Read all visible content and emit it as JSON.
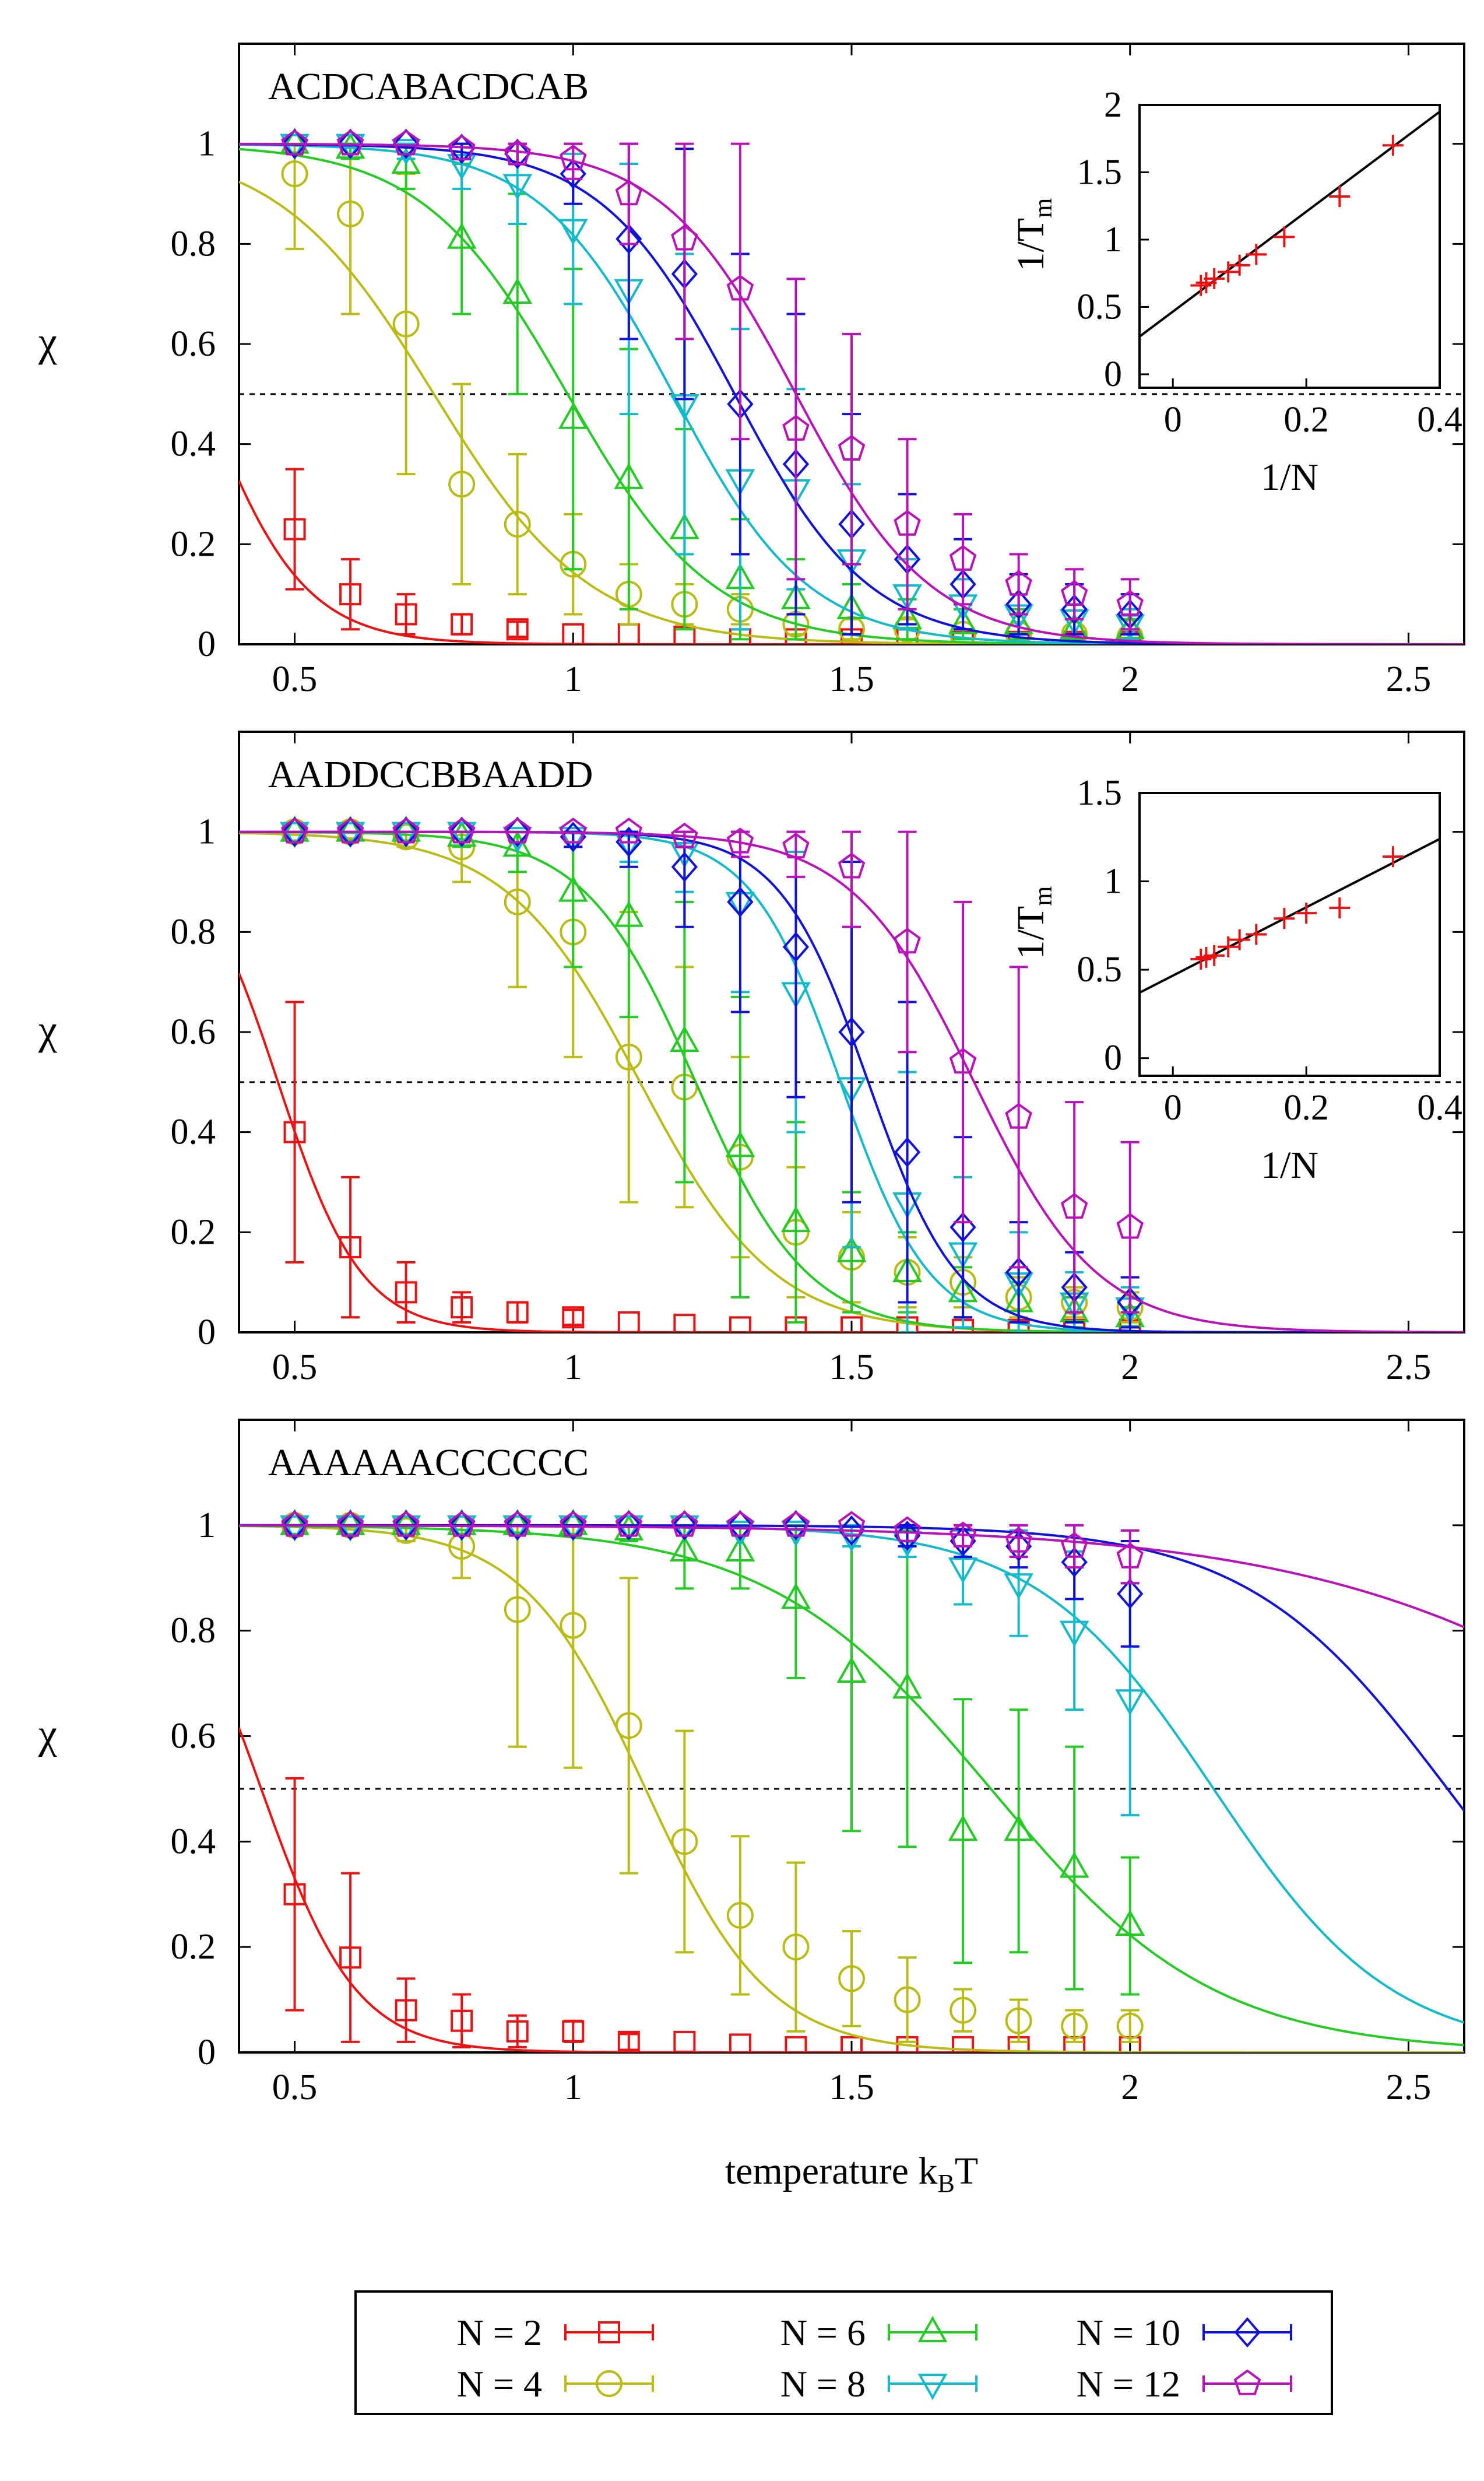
{
  "chart_data": [
    {
      "type": "line",
      "title": "ACDCABACDCAB",
      "xlabel": "",
      "ylabel": "χ",
      "xlim": [
        0.4,
        2.6
      ],
      "ylim": [
        0,
        1.2
      ],
      "xticks": [
        "0.5",
        "1",
        "1.5",
        "2",
        "2.5"
      ],
      "yticks": [
        "0",
        "0.2",
        "0.4",
        "0.6",
        "0.8",
        "1"
      ],
      "reference_line": {
        "y": 0.5,
        "style": "dashed"
      },
      "x": [
        0.5,
        0.6,
        0.7,
        0.8,
        0.9,
        1.0,
        1.1,
        1.2,
        1.3,
        1.4,
        1.5,
        1.6,
        1.7,
        1.8,
        1.9,
        2.0
      ],
      "series": [
        {
          "name": "N = 2",
          "values": [
            0.23,
            0.1,
            0.06,
            0.04,
            0.03,
            0.02,
            0.02,
            0.015,
            0.01,
            0.01,
            0.01,
            0.01,
            0.005,
            0.005,
            0.005,
            0.005
          ],
          "errors": [
            0.12,
            0.07,
            0.04,
            0.02,
            0.015,
            0.01,
            0.01,
            0.01,
            0.01,
            0.01,
            0.01,
            0.01,
            0.01,
            0.01,
            0.01,
            0.01
          ],
          "fit_tm": 0.335,
          "fit_w": 0.09
        },
        {
          "name": "N = 4",
          "values": [
            0.94,
            0.86,
            0.64,
            0.32,
            0.24,
            0.16,
            0.1,
            0.08,
            0.07,
            0.04,
            0.03,
            0.03,
            0.02,
            0.02,
            0.02,
            0.015
          ],
          "errors": [
            0.15,
            0.2,
            0.3,
            0.2,
            0.14,
            0.1,
            0.06,
            0.04,
            0.03,
            0.02,
            0.02,
            0.02,
            0.01,
            0.01,
            0.01,
            0.01
          ],
          "fit_tm": 0.75,
          "fit_w": 0.14
        },
        {
          "name": "N = 6",
          "values": [
            1.0,
            0.99,
            0.96,
            0.81,
            0.7,
            0.45,
            0.33,
            0.23,
            0.13,
            0.09,
            0.07,
            0.05,
            0.04,
            0.04,
            0.03,
            0.03
          ],
          "errors": [
            0.01,
            0.02,
            0.05,
            0.15,
            0.2,
            0.3,
            0.26,
            0.2,
            0.12,
            0.08,
            0.05,
            0.04,
            0.03,
            0.03,
            0.02,
            0.02
          ],
          "fit_tm": 0.99,
          "fit_w": 0.13
        },
        {
          "name": "N = 8",
          "values": [
            1.0,
            1.0,
            0.99,
            0.96,
            0.92,
            0.83,
            0.71,
            0.48,
            0.33,
            0.31,
            0.17,
            0.1,
            0.08,
            0.06,
            0.05,
            0.04
          ],
          "errors": [
            0.01,
            0.01,
            0.02,
            0.05,
            0.08,
            0.15,
            0.25,
            0.3,
            0.3,
            0.2,
            0.15,
            0.07,
            0.05,
            0.04,
            0.03,
            0.03
          ],
          "fit_tm": 1.18,
          "fit_w": 0.12
        },
        {
          "name": "N = 10",
          "values": [
            1.0,
            1.0,
            1.0,
            0.99,
            0.98,
            0.94,
            0.81,
            0.74,
            0.48,
            0.36,
            0.24,
            0.17,
            0.12,
            0.08,
            0.07,
            0.06
          ],
          "errors": [
            0.01,
            0.01,
            0.01,
            0.02,
            0.02,
            0.06,
            0.2,
            0.25,
            0.3,
            0.3,
            0.22,
            0.13,
            0.09,
            0.06,
            0.05,
            0.04
          ],
          "fit_tm": 1.29,
          "fit_w": 0.12
        },
        {
          "name": "N = 12",
          "values": [
            1.0,
            1.0,
            1.0,
            0.99,
            0.98,
            0.97,
            0.9,
            0.81,
            0.71,
            0.43,
            0.39,
            0.24,
            0.17,
            0.12,
            0.1,
            0.08
          ],
          "errors": [
            0.01,
            0.01,
            0.01,
            0.01,
            0.02,
            0.04,
            0.1,
            0.2,
            0.3,
            0.3,
            0.23,
            0.17,
            0.09,
            0.06,
            0.05,
            0.05
          ],
          "fit_tm": 1.4,
          "fit_w": 0.12
        }
      ],
      "inset": {
        "xlabel": "1/N",
        "ylabel": "1/T",
        "ylabel_sub": "m",
        "xlim": [
          -0.05,
          0.4
        ],
        "ylim": [
          -0.1,
          2.0
        ],
        "xticks": [
          "0",
          "0.2",
          "0.4"
        ],
        "yticks": [
          "0",
          "0.5",
          "1",
          "1.5",
          "2"
        ],
        "points": [
          [
            0.042,
            0.66
          ],
          [
            0.05,
            0.68
          ],
          [
            0.062,
            0.71
          ],
          [
            0.083,
            0.76
          ],
          [
            0.1,
            0.81
          ],
          [
            0.125,
            0.89
          ],
          [
            0.167,
            1.02
          ],
          [
            0.25,
            1.32
          ],
          [
            0.33,
            1.7
          ]
        ],
        "fit_line": [
          [
            -0.05,
            0.28
          ],
          [
            0.4,
            1.95
          ]
        ]
      }
    },
    {
      "type": "line",
      "title": "AADDCCBBAADD",
      "xlabel": "",
      "ylabel": "χ",
      "xlim": [
        0.4,
        2.6
      ],
      "ylim": [
        0,
        1.2
      ],
      "xticks": [
        "0.5",
        "1",
        "1.5",
        "2",
        "2.5"
      ],
      "yticks": [
        "0",
        "0.2",
        "0.4",
        "0.6",
        "0.8",
        "1"
      ],
      "reference_line": {
        "y": 0.5,
        "style": "dashed"
      },
      "x": [
        0.5,
        0.6,
        0.7,
        0.8,
        0.9,
        1.0,
        1.1,
        1.2,
        1.3,
        1.4,
        1.5,
        1.6,
        1.7,
        1.8,
        1.9,
        2.0
      ],
      "series": [
        {
          "name": "N = 2",
          "values": [
            0.4,
            0.17,
            0.08,
            0.05,
            0.04,
            0.03,
            0.02,
            0.015,
            0.01,
            0.01,
            0.01,
            0.01,
            0.005,
            0.005,
            0.005,
            0.005
          ],
          "errors": [
            0.26,
            0.14,
            0.06,
            0.03,
            0.02,
            0.015,
            0.01,
            0.01,
            0.01,
            0.01,
            0.01,
            0.01,
            0.01,
            0.01,
            0.01,
            0.01
          ],
          "fit_tm": 0.47,
          "fit_w": 0.075
        },
        {
          "name": "N = 4",
          "values": [
            1.0,
            1.0,
            0.99,
            0.97,
            0.86,
            0.8,
            0.55,
            0.49,
            0.35,
            0.2,
            0.15,
            0.12,
            0.1,
            0.07,
            0.06,
            0.05
          ],
          "errors": [
            0.01,
            0.01,
            0.02,
            0.07,
            0.17,
            0.25,
            0.29,
            0.24,
            0.2,
            0.13,
            0.09,
            0.07,
            0.05,
            0.04,
            0.03,
            0.03
          ],
          "fit_tm": 1.12,
          "fit_w": 0.12
        },
        {
          "name": "N = 6",
          "values": [
            1.0,
            1.0,
            1.0,
            0.99,
            0.97,
            0.88,
            0.83,
            0.58,
            0.37,
            0.22,
            0.16,
            0.12,
            0.08,
            0.06,
            0.04,
            0.03
          ],
          "errors": [
            0.01,
            0.01,
            0.01,
            0.02,
            0.05,
            0.15,
            0.2,
            0.28,
            0.3,
            0.2,
            0.12,
            0.08,
            0.05,
            0.04,
            0.03,
            0.02
          ],
          "fit_tm": 1.22,
          "fit_w": 0.1
        },
        {
          "name": "N = 8",
          "values": [
            1.0,
            1.0,
            1.0,
            1.0,
            0.99,
            0.99,
            0.98,
            0.96,
            0.86,
            0.68,
            0.49,
            0.26,
            0.16,
            0.1,
            0.06,
            0.05
          ],
          "errors": [
            0.01,
            0.01,
            0.01,
            0.01,
            0.01,
            0.02,
            0.04,
            0.08,
            0.18,
            0.28,
            0.32,
            0.26,
            0.15,
            0.1,
            0.06,
            0.04
          ],
          "fit_tm": 1.48,
          "fit_w": 0.08
        },
        {
          "name": "N = 10",
          "values": [
            1.0,
            1.0,
            1.0,
            1.0,
            1.0,
            0.99,
            0.98,
            0.93,
            0.86,
            0.77,
            0.6,
            0.36,
            0.21,
            0.12,
            0.09,
            0.06
          ],
          "errors": [
            0.01,
            0.01,
            0.01,
            0.01,
            0.01,
            0.02,
            0.05,
            0.12,
            0.22,
            0.3,
            0.34,
            0.3,
            0.18,
            0.1,
            0.07,
            0.05
          ],
          "fit_tm": 1.53,
          "fit_w": 0.08
        },
        {
          "name": "N = 12",
          "values": [
            1.0,
            1.0,
            1.0,
            1.0,
            1.0,
            1.0,
            1.0,
            0.99,
            0.98,
            0.97,
            0.93,
            0.78,
            0.54,
            0.43,
            0.25,
            0.21
          ],
          "errors": [
            0.01,
            0.01,
            0.01,
            0.01,
            0.01,
            0.01,
            0.01,
            0.02,
            0.03,
            0.06,
            0.12,
            0.22,
            0.32,
            0.3,
            0.21,
            0.17
          ],
          "fit_tm": 1.72,
          "fit_w": 0.11
        }
      ],
      "inset": {
        "xlabel": "1/N",
        "ylabel": "1/T",
        "ylabel_sub": "m",
        "xlim": [
          -0.05,
          0.4
        ],
        "ylim": [
          -0.1,
          1.5
        ],
        "xticks": [
          "0",
          "0.2",
          "0.4"
        ],
        "yticks": [
          "0",
          "0.5",
          "1",
          "1.5"
        ],
        "points": [
          [
            0.042,
            0.56
          ],
          [
            0.05,
            0.57
          ],
          [
            0.062,
            0.58
          ],
          [
            0.083,
            0.63
          ],
          [
            0.1,
            0.67
          ],
          [
            0.125,
            0.7
          ],
          [
            0.167,
            0.79
          ],
          [
            0.2,
            0.82
          ],
          [
            0.25,
            0.85
          ],
          [
            0.33,
            1.14
          ]
        ],
        "fit_line": [
          [
            -0.05,
            0.37
          ],
          [
            0.4,
            1.24
          ]
        ]
      }
    },
    {
      "type": "line",
      "title": "AAAAAACCCCCC",
      "xlabel": "temperature  k",
      "xlabel_sub": "B",
      "xlabel_tail": "T",
      "ylabel": "χ",
      "xlim": [
        0.4,
        2.6
      ],
      "ylim": [
        0,
        1.2
      ],
      "xticks": [
        "0.5",
        "1",
        "1.5",
        "2",
        "2.5"
      ],
      "yticks": [
        "0",
        "0.2",
        "0.4",
        "0.6",
        "0.8",
        "1"
      ],
      "reference_line": {
        "y": 0.5,
        "style": "dashed"
      },
      "x": [
        0.5,
        0.6,
        0.7,
        0.8,
        0.9,
        1.0,
        1.1,
        1.2,
        1.3,
        1.4,
        1.5,
        1.6,
        1.7,
        1.8,
        1.9,
        2.0
      ],
      "series": [
        {
          "name": "N = 2",
          "values": [
            0.3,
            0.18,
            0.08,
            0.06,
            0.04,
            0.04,
            0.02,
            0.02,
            0.015,
            0.01,
            0.01,
            0.01,
            0.01,
            0.01,
            0.01,
            0.01
          ],
          "errors": [
            0.22,
            0.16,
            0.06,
            0.05,
            0.03,
            0.02,
            0.015,
            0.01,
            0.01,
            0.01,
            0.01,
            0.01,
            0.01,
            0.01,
            0.01,
            0.01
          ],
          "fit_tm": 0.44,
          "fit_w": 0.085
        },
        {
          "name": "N = 4",
          "values": [
            1.0,
            1.0,
            0.99,
            0.96,
            0.84,
            0.81,
            0.62,
            0.4,
            0.26,
            0.2,
            0.14,
            0.1,
            0.08,
            0.06,
            0.05,
            0.05
          ],
          "errors": [
            0.01,
            0.01,
            0.02,
            0.06,
            0.26,
            0.27,
            0.28,
            0.21,
            0.15,
            0.16,
            0.09,
            0.08,
            0.04,
            0.04,
            0.03,
            0.03
          ],
          "fit_tm": 1.13,
          "fit_w": 0.11
        },
        {
          "name": "N = 6",
          "values": [
            1.0,
            1.0,
            1.0,
            1.0,
            1.0,
            1.0,
            0.99,
            0.95,
            0.95,
            0.86,
            0.72,
            0.69,
            0.42,
            0.42,
            0.35,
            0.24
          ],
          "errors": [
            0.01,
            0.01,
            0.01,
            0.01,
            0.01,
            0.01,
            0.02,
            0.07,
            0.07,
            0.15,
            0.3,
            0.3,
            0.25,
            0.23,
            0.23,
            0.13
          ],
          "fit_tm": 1.75,
          "fit_w": 0.2
        },
        {
          "name": "N = 8",
          "values": [
            1.0,
            1.0,
            1.0,
            1.0,
            1.0,
            1.0,
            1.0,
            1.0,
            0.99,
            0.99,
            0.98,
            0.97,
            0.92,
            0.89,
            0.8,
            0.67
          ],
          "errors": [
            0.01,
            0.01,
            0.01,
            0.01,
            0.01,
            0.01,
            0.01,
            0.01,
            0.01,
            0.01,
            0.02,
            0.03,
            0.07,
            0.1,
            0.15,
            0.22
          ],
          "fit_tm": 2.15,
          "fit_w": 0.16
        },
        {
          "name": "N = 10",
          "values": [
            1.0,
            1.0,
            1.0,
            1.0,
            1.0,
            1.0,
            1.0,
            1.0,
            1.0,
            1.0,
            0.99,
            0.98,
            0.97,
            0.96,
            0.93,
            0.87
          ],
          "errors": [
            0.01,
            0.01,
            0.01,
            0.01,
            0.01,
            0.01,
            0.01,
            0.01,
            0.01,
            0.01,
            0.01,
            0.02,
            0.03,
            0.04,
            0.07,
            0.1
          ],
          "fit_tm": 2.57,
          "fit_w": 0.18
        },
        {
          "name": "N = 12",
          "values": [
            1.0,
            1.0,
            1.0,
            1.0,
            1.0,
            1.0,
            1.0,
            1.0,
            1.0,
            1.0,
            1.0,
            0.99,
            0.98,
            0.97,
            0.96,
            0.94
          ],
          "errors": [
            0.01,
            0.01,
            0.01,
            0.01,
            0.01,
            0.01,
            0.01,
            0.01,
            0.01,
            0.01,
            0.01,
            0.01,
            0.02,
            0.03,
            0.04,
            0.05
          ],
          "fit_tm": 3.1,
          "fit_w": 0.35
        }
      ]
    }
  ],
  "legend": {
    "placement": "bottom",
    "entries": [
      {
        "label": "N = 2",
        "color": "#ee1111",
        "marker": "square"
      },
      {
        "label": "N = 6",
        "color": "#22cc22",
        "marker": "triangle-up"
      },
      {
        "label": "N = 10",
        "color": "#1111dd",
        "marker": "diamond"
      },
      {
        "label": "N = 4",
        "color": "#bbbb11",
        "marker": "circle"
      },
      {
        "label": "N = 8",
        "color": "#11bbcc",
        "marker": "triangle-down"
      },
      {
        "label": "N = 12",
        "color": "#bb11bb",
        "marker": "pentagon"
      }
    ]
  },
  "series_colors": [
    "#ee1111",
    "#bbbb11",
    "#22cc22",
    "#11bbcc",
    "#1111dd",
    "#bb11bb"
  ],
  "series_markers": [
    "square",
    "circle",
    "triangle-up",
    "triangle-down",
    "diamond",
    "pentagon"
  ],
  "inset_point_color": "#ee1111"
}
